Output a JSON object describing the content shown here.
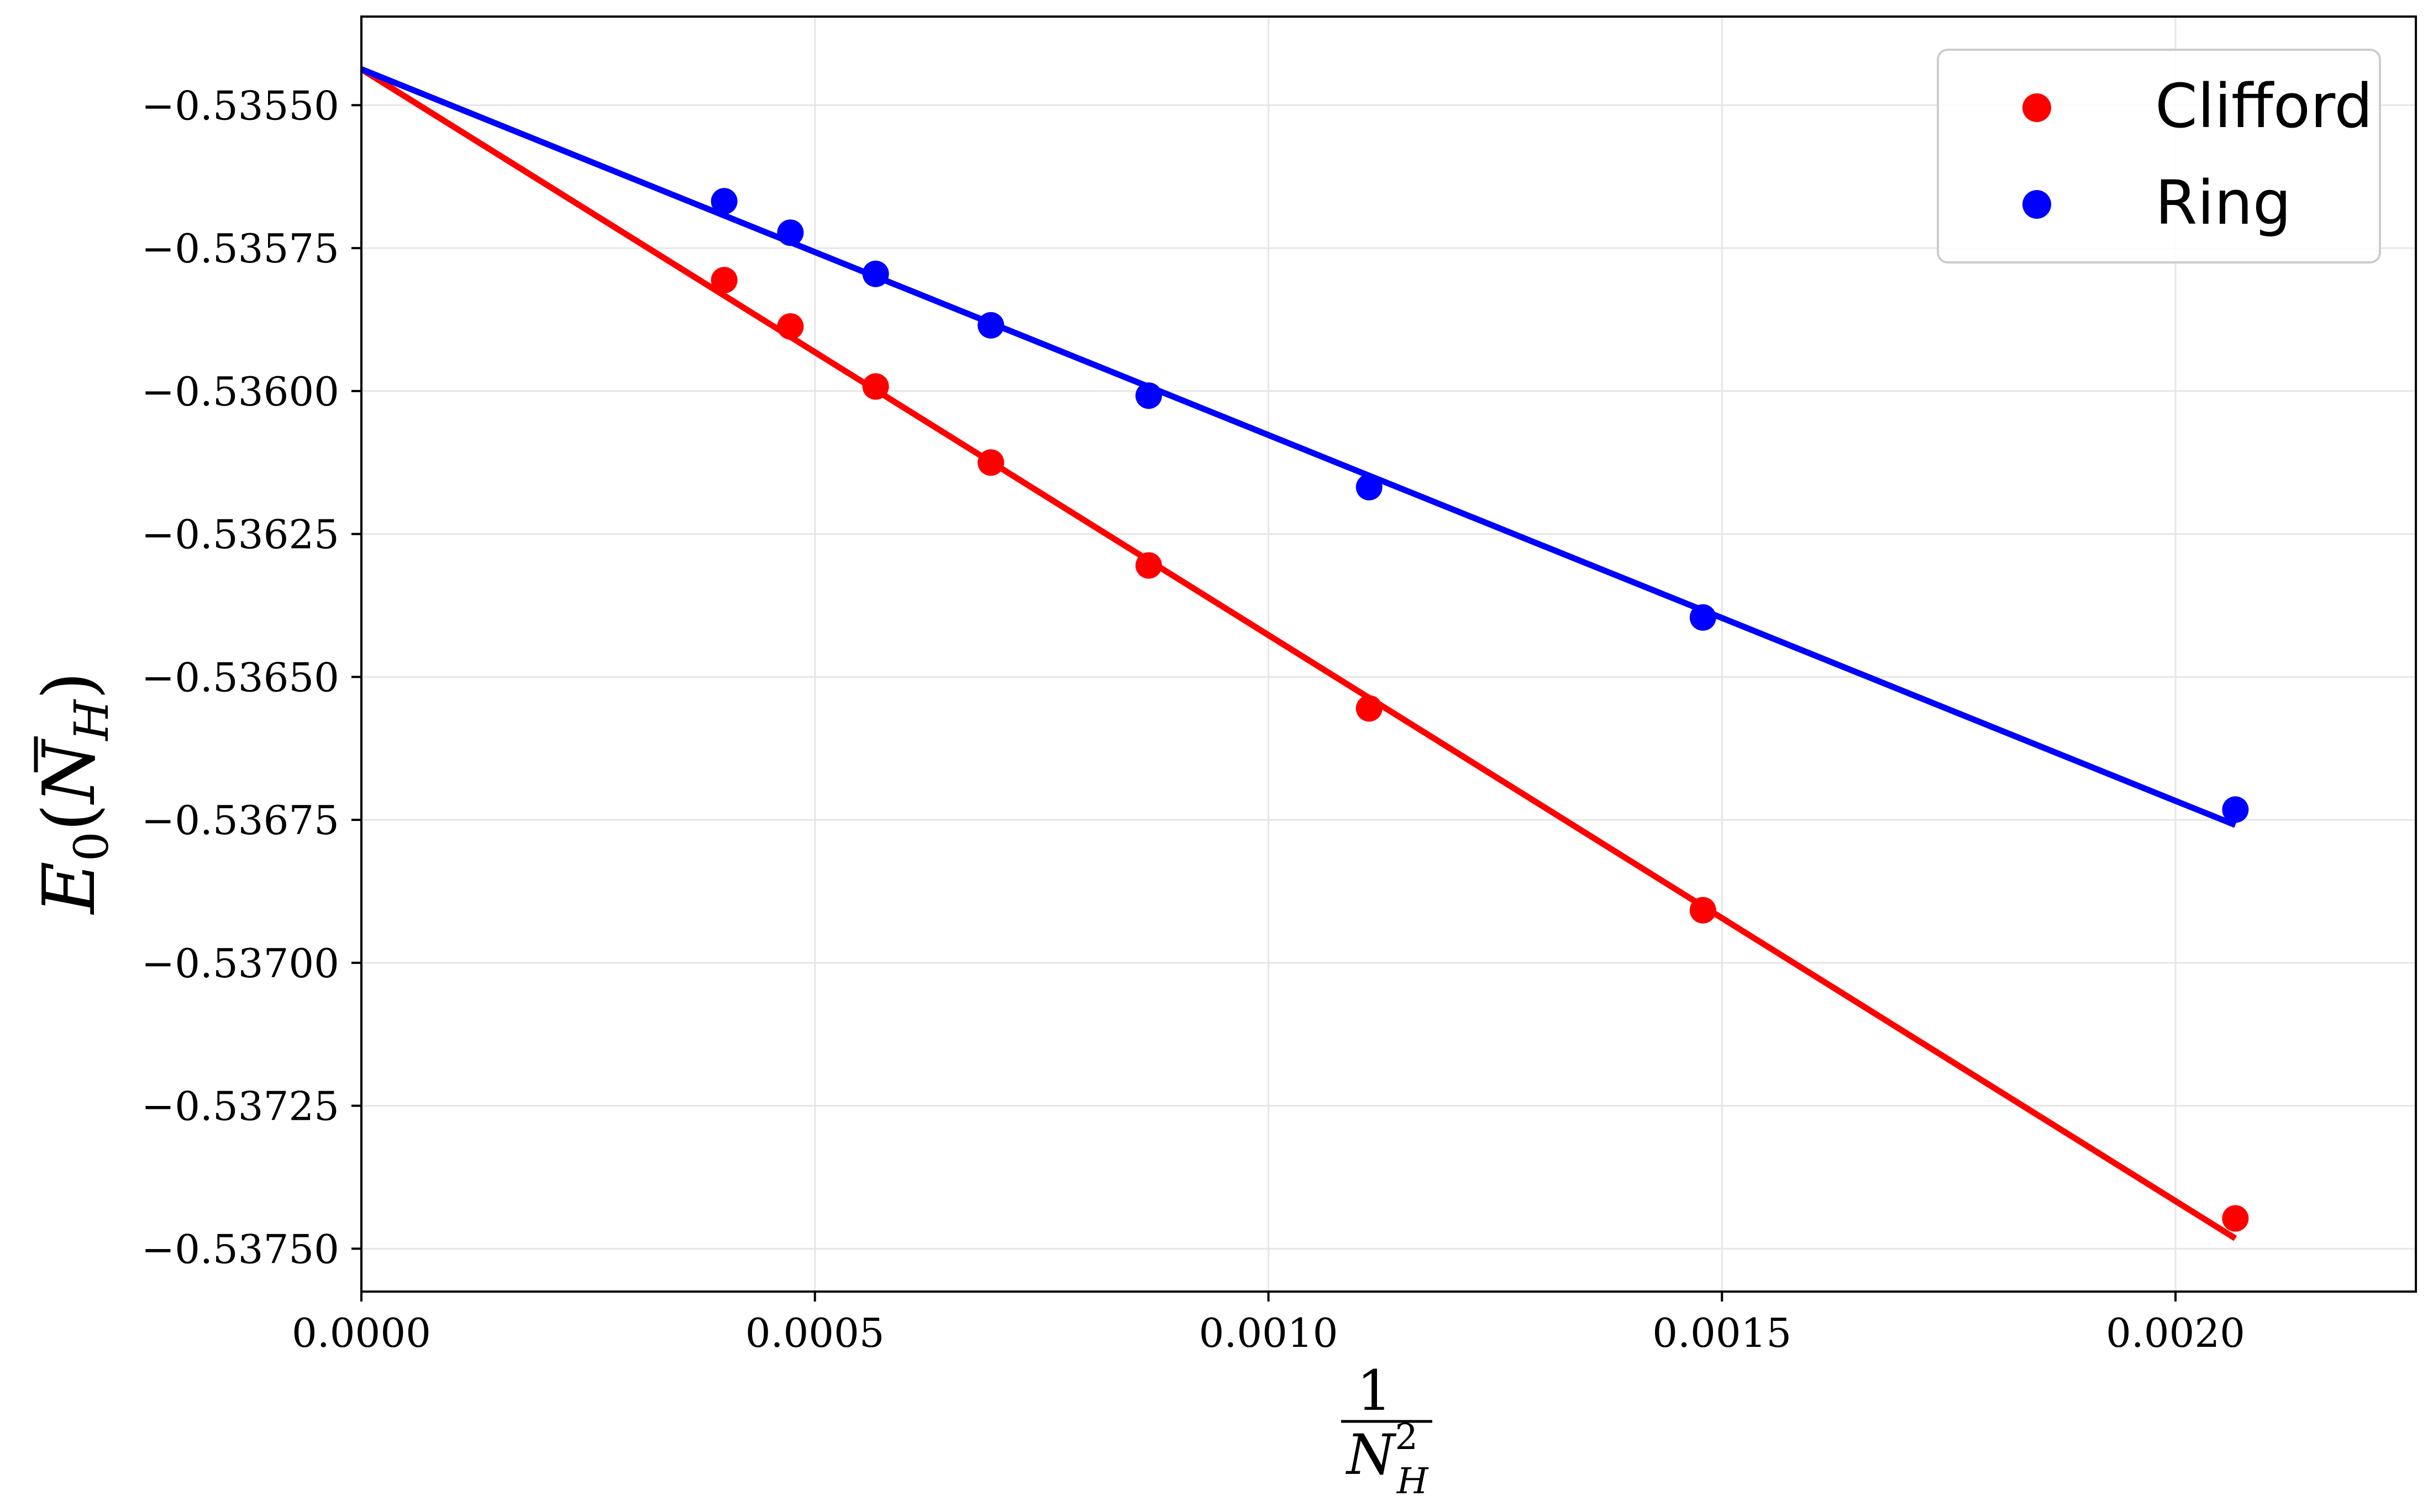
{
  "chart_data": {
    "type": "scatter",
    "xlabel": {
      "numerator": "1",
      "denominator_base": "N",
      "denominator_sup": "2",
      "denominator_sub": "H"
    },
    "ylabel": {
      "base": "E",
      "sub": "0",
      "arg_open": "(",
      "arg_base": "N",
      "arg_sub": "H",
      "arg_close": ")"
    },
    "xlim": [
      0.0,
      0.002265
    ],
    "ylim": [
      -0.537575,
      -0.535345
    ],
    "xticks": [
      0.0,
      0.0005,
      0.001,
      0.0015,
      0.002
    ],
    "xtick_labels": [
      "0.0000",
      "0.0005",
      "0.0010",
      "0.0015",
      "0.0020"
    ],
    "yticks": [
      -0.5355,
      -0.53575,
      -0.536,
      -0.53625,
      -0.5365,
      -0.53675,
      -0.537,
      -0.53725,
      -0.5375
    ],
    "ytick_labels": [
      "−0.53550",
      "−0.53575",
      "−0.53600",
      "−0.53625",
      "−0.53650",
      "−0.53675",
      "−0.53700",
      "−0.53725",
      "−0.53750"
    ],
    "grid": true,
    "legend_position": "top-right",
    "series": [
      {
        "name": "Clifford",
        "color": "#ff0000",
        "x": [
          0.0004,
          0.000473,
          0.000567,
          0.000694,
          0.000868,
          0.001111,
          0.001479,
          0.002066
        ],
        "y": [
          -0.535806,
          -0.535887,
          -0.535992,
          -0.536125,
          -0.536305,
          -0.536555,
          -0.536908,
          -0.537447
        ],
        "fit": {
          "x": [
            0.0,
            0.002066
          ],
          "y": [
            -0.535437,
            -0.537482
          ]
        }
      },
      {
        "name": "Ring",
        "color": "#0000ff",
        "x": [
          0.0004,
          0.000473,
          0.000567,
          0.000694,
          0.000868,
          0.001111,
          0.001479,
          0.002066
        ],
        "y": [
          -0.535668,
          -0.535723,
          -0.535795,
          -0.535885,
          -0.536008,
          -0.536168,
          -0.536396,
          -0.536732
        ],
        "fit": {
          "x": [
            0.0,
            0.002066
          ],
          "y": [
            -0.535437,
            -0.536759
          ]
        }
      }
    ]
  }
}
